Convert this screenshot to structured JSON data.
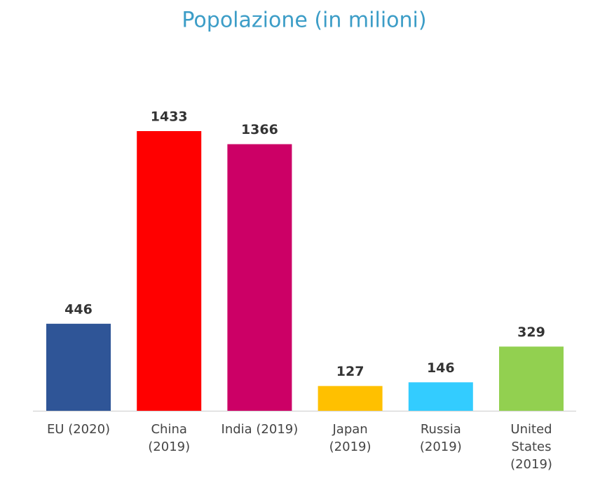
{
  "chart_data": {
    "type": "bar",
    "title": "Popolazione (in milioni)",
    "categories": [
      [
        "EU (2020)"
      ],
      [
        "China",
        "(2019)"
      ],
      [
        "India (2019)"
      ],
      [
        "Japan",
        "(2019)"
      ],
      [
        "Russia",
        "(2019)"
      ],
      [
        "United",
        "States",
        "(2019)"
      ]
    ],
    "values": [
      446,
      1433,
      1366,
      127,
      146,
      329
    ],
    "colors": [
      "#2f5597",
      "#ff0000",
      "#cc0066",
      "#ffc000",
      "#33ccff",
      "#92d050"
    ]
  }
}
